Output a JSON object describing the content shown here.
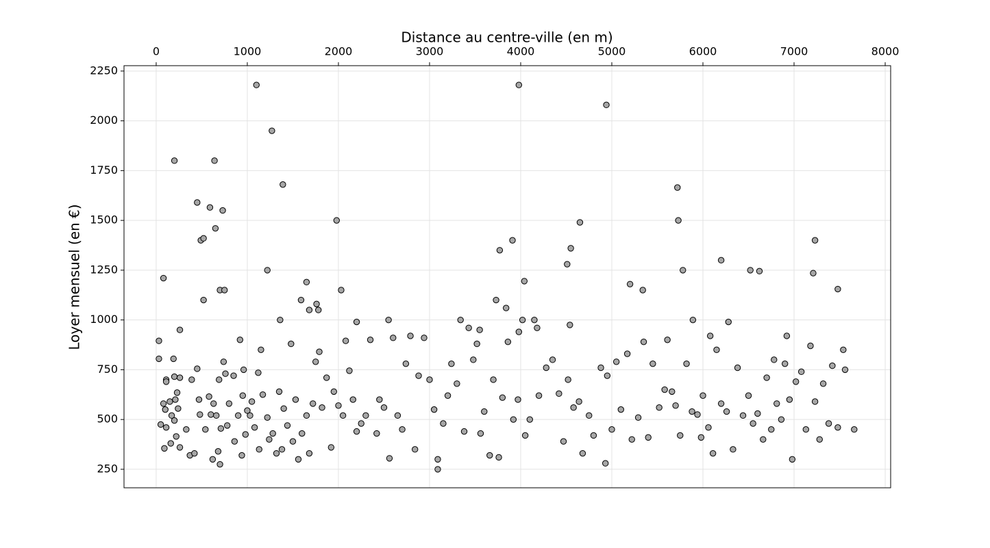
{
  "chart_data": {
    "type": "scatter",
    "xlabel": "Distance au centre-ville (en m)",
    "ylabel": "Loyer mensuel (en €)",
    "x_axis_position": "top",
    "grid": true,
    "color": "#a6a6a6",
    "edgecolor": "#000000",
    "xlim": [
      -353,
      8060
    ],
    "ylim": [
      157,
      2277
    ],
    "xticks": [
      0,
      1000,
      2000,
      3000,
      4000,
      5000,
      6000,
      7000,
      8000
    ],
    "yticks": [
      250,
      500,
      750,
      1000,
      1250,
      1500,
      1750,
      2000,
      2250
    ],
    "x": [
      1100,
      3980,
      4940,
      1270,
      200,
      640,
      5720,
      1390,
      450,
      590,
      730,
      4650,
      1980,
      5730,
      650,
      490,
      520,
      3910,
      7230,
      4550,
      3770,
      6200,
      4510,
      1220,
      5780,
      6520,
      6620,
      7210,
      80,
      4040,
      1650,
      5200,
      5340,
      7480,
      700,
      750,
      2030,
      520,
      1590,
      3730,
      1760,
      1680,
      1780,
      3840,
      4150,
      4020,
      1360,
      3340,
      2550,
      5890,
      6280,
      2200,
      4540,
      4180,
      260,
      3550,
      3980,
      6080,
      6920,
      30,
      30,
      50,
      80,
      90,
      100,
      110,
      110,
      110,
      150,
      160,
      170,
      190,
      200,
      200,
      210,
      220,
      230,
      240,
      260,
      260,
      330,
      370,
      390,
      420,
      450,
      470,
      480,
      540,
      580,
      600,
      620,
      630,
      660,
      680,
      690,
      700,
      710,
      740,
      760,
      780,
      800,
      850,
      860,
      900,
      920,
      940,
      950,
      960,
      980,
      1000,
      1030,
      1050,
      1080,
      1120,
      1130,
      1150,
      1170,
      1220,
      1240,
      1280,
      1320,
      1350,
      1380,
      1400,
      1440,
      1480,
      1500,
      1530,
      1560,
      1600,
      1650,
      1680,
      1720,
      1750,
      1790,
      1820,
      1870,
      1920,
      1950,
      2000,
      2050,
      2080,
      2120,
      2160,
      2200,
      2250,
      2300,
      2350,
      2420,
      2450,
      2500,
      2560,
      2600,
      2650,
      2700,
      2740,
      2790,
      2840,
      2880,
      2940,
      3000,
      3050,
      3090,
      3090,
      3150,
      3200,
      3240,
      3300,
      3380,
      3430,
      3480,
      3520,
      3560,
      3600,
      3660,
      3700,
      3760,
      3800,
      3860,
      3920,
      3970,
      4050,
      4100,
      4200,
      4280,
      4350,
      4420,
      4470,
      4520,
      4580,
      4640,
      4680,
      4750,
      4800,
      4880,
      4930,
      4950,
      5000,
      5050,
      5100,
      5170,
      5220,
      5290,
      5350,
      5400,
      5450,
      5520,
      5580,
      5610,
      5660,
      5700,
      5750,
      5820,
      5880,
      5940,
      5980,
      6000,
      6060,
      6110,
      6150,
      6200,
      6260,
      6330,
      6380,
      6440,
      6500,
      6550,
      6600,
      6660,
      6700,
      6750,
      6780,
      6810,
      6860,
      6900,
      6950,
      6980,
      7020,
      7080,
      7130,
      7180,
      7230,
      7280,
      7320,
      7380,
      7420,
      7480,
      7540,
      7560,
      7660
    ],
    "values": [
      2180,
      2180,
      2080,
      1950,
      1800,
      1800,
      1665,
      1680,
      1590,
      1565,
      1550,
      1490,
      1500,
      1500,
      1460,
      1400,
      1410,
      1400,
      1400,
      1360,
      1350,
      1300,
      1280,
      1250,
      1250,
      1250,
      1245,
      1235,
      1210,
      1195,
      1190,
      1180,
      1150,
      1155,
      1150,
      1150,
      1150,
      1100,
      1100,
      1100,
      1080,
      1050,
      1050,
      1060,
      1000,
      1000,
      1000,
      1000,
      1000,
      1000,
      990,
      990,
      975,
      960,
      950,
      950,
      940,
      920,
      920,
      895,
      805,
      475,
      580,
      355,
      550,
      700,
      690,
      460,
      590,
      380,
      520,
      805,
      495,
      715,
      600,
      415,
      635,
      555,
      710,
      360,
      450,
      320,
      700,
      330,
      755,
      600,
      525,
      450,
      615,
      525,
      300,
      580,
      520,
      340,
      700,
      275,
      455,
      790,
      730,
      470,
      580,
      720,
      390,
      520,
      900,
      320,
      620,
      750,
      425,
      545,
      520,
      590,
      460,
      735,
      350,
      850,
      625,
      510,
      400,
      430,
      330,
      640,
      350,
      555,
      470,
      880,
      390,
      600,
      300,
      430,
      520,
      330,
      580,
      790,
      840,
      560,
      710,
      360,
      640,
      570,
      520,
      895,
      745,
      600,
      440,
      480,
      520,
      900,
      430,
      600,
      560,
      305,
      910,
      520,
      450,
      780,
      920,
      350,
      720,
      910,
      700,
      550,
      250,
      300,
      480,
      620,
      780,
      680,
      440,
      960,
      800,
      880,
      430,
      540,
      320,
      700,
      310,
      610,
      890,
      500,
      600,
      420,
      500,
      620,
      760,
      800,
      630,
      390,
      700,
      560,
      590,
      330,
      520,
      420,
      760,
      280,
      720,
      450,
      790,
      550,
      830,
      400,
      510,
      890,
      410,
      780,
      560,
      650,
      900,
      640,
      570,
      420,
      780,
      540,
      525,
      410,
      620,
      460,
      330,
      850,
      580,
      540,
      350,
      760,
      520,
      620,
      480,
      530,
      400,
      710,
      450,
      800,
      580,
      500,
      780,
      600,
      300,
      690,
      740,
      450,
      870,
      590,
      400,
      680,
      480,
      770,
      460,
      850,
      750,
      450
    ]
  }
}
